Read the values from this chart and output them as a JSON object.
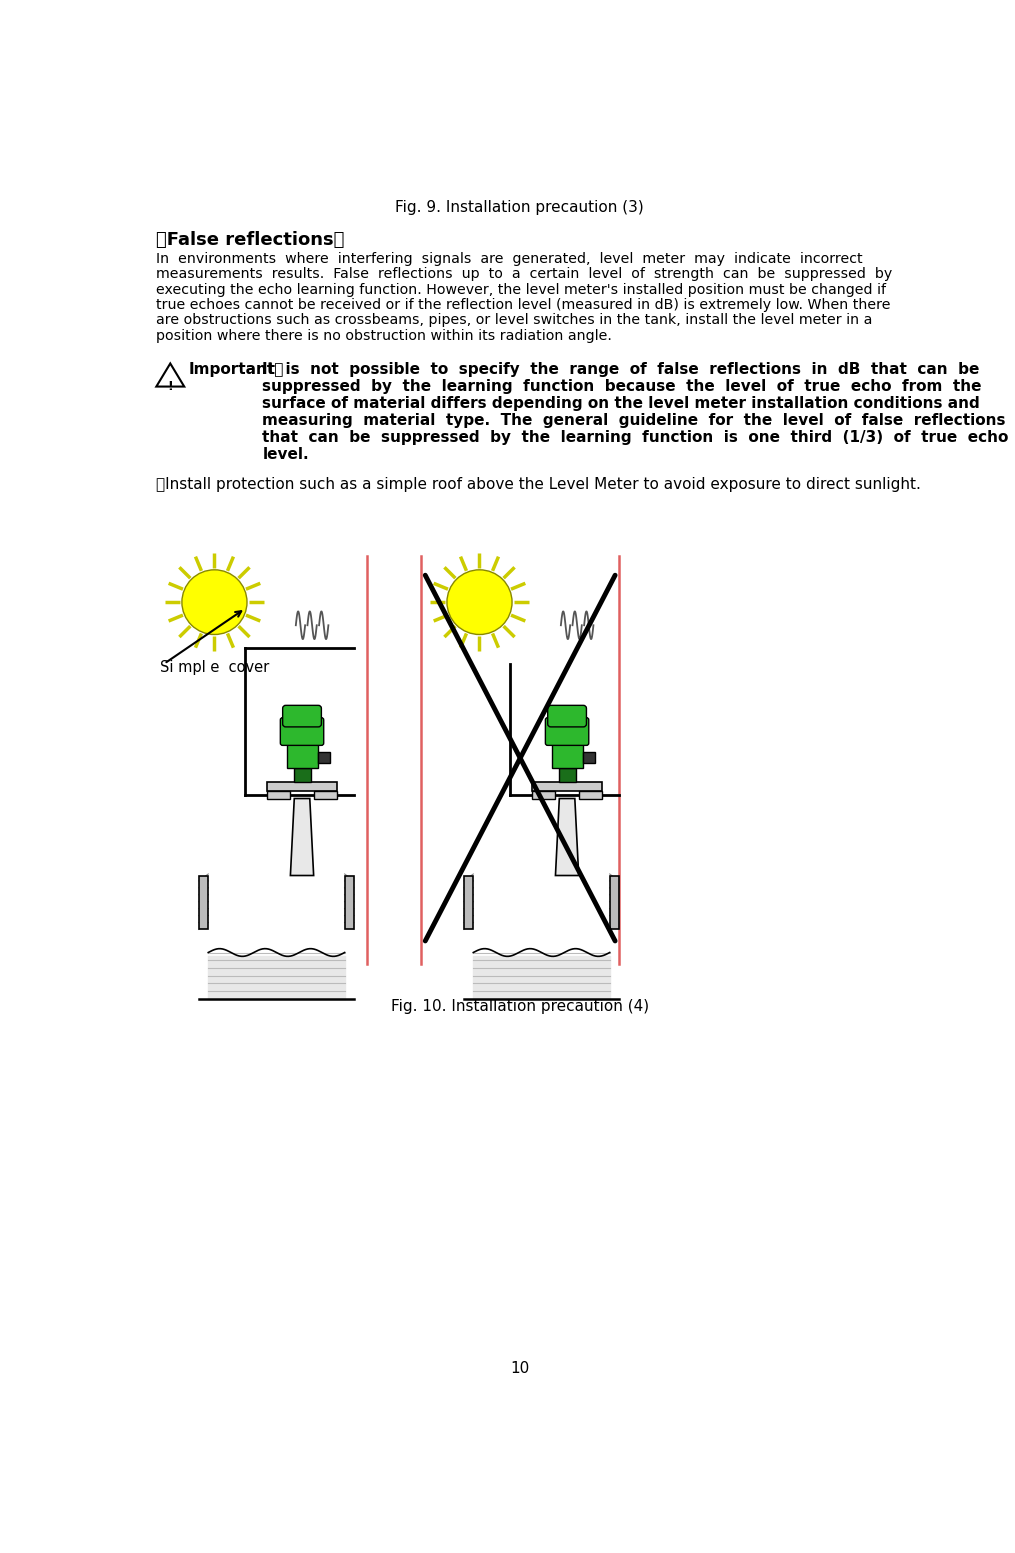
{
  "fig9_title": "Fig. 9. Installation precaution (3)",
  "fig10_title": "Fig. 10. Installation precaution (4)",
  "section_title": "【False reflections】",
  "simple_cover_label": "Si mpl e  cover",
  "page_number": "10",
  "bg_color": "#ffffff",
  "text_color": "#000000",
  "sun_yellow": "#ffff00",
  "sun_ray_color": "#cccc00",
  "green_dark": "#228B22",
  "green_mid": "#32CD32",
  "red_line_color": "#e06060",
  "cross_color": "#000000",
  "gray_wall": "#aaaaaa",
  "gray_light": "#dddddd",
  "gray_hatch": "#bbbbbb"
}
